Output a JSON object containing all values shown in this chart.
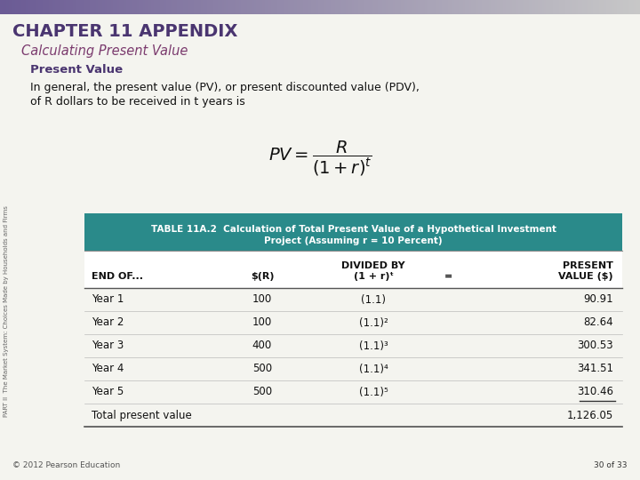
{
  "chapter_title": "CHAPTER 11 APPENDIX",
  "section_title": "Calculating Present Value",
  "subsection_title": "Present Value",
  "body_text_line1": "In general, the present value (PV), or present discounted value (PDV),",
  "body_text_line2": "of R dollars to be received in t years is",
  "table_title_line1": "TABLE 11A.2  Calculation of Total Present Value of a Hypothetical Investment",
  "table_title_line2": "Project (Assuming r = 10 Percent)",
  "col_header_row1": [
    "",
    "",
    "DIVIDED BY",
    "",
    "PRESENT"
  ],
  "col_header_row2": [
    "END OF...",
    "$(R)",
    "(1 + r)ᵗ",
    "=",
    "VALUE ($)"
  ],
  "rows": [
    [
      "Year 1",
      "100",
      "(1.1)",
      "",
      "90.91"
    ],
    [
      "Year 2",
      "100",
      "(1.1)²",
      "",
      "82.64"
    ],
    [
      "Year 3",
      "400",
      "(1.1)³",
      "",
      "300.53"
    ],
    [
      "Year 4",
      "500",
      "(1.1)⁴",
      "",
      "341.51"
    ],
    [
      "Year 5",
      "500",
      "(1.1)⁵",
      "",
      "310.46"
    ],
    [
      "Total present value",
      "",
      "",
      "",
      "1,126.05"
    ]
  ],
  "side_text": "PART II  The Market System: Choices Made by Households and Firms",
  "footer_left": "© 2012 Pearson Education",
  "footer_right": "30 of 33",
  "chapter_title_color": "#4a3570",
  "section_title_color": "#7b3b6e",
  "subsection_title_color": "#4a3570",
  "table_header_bg": "#2a8a8a",
  "background_color": "#f4f4ef",
  "side_text_color": "#666666",
  "gradient_left": "#6b5b95",
  "gradient_right": "#c8c8c8"
}
